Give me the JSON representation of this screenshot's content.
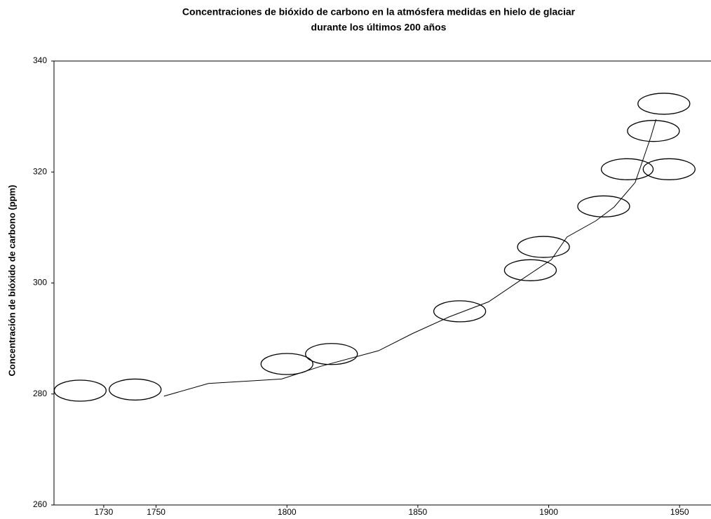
{
  "chart_data": {
    "type": "scatter",
    "title": "Concentraciones de bióxido de carbono en la atmósfera medidas en hielo de glaciar",
    "subtitle": "durante los últimos 200 años",
    "y_label": "Concentración de bióxido de carbono  (ppm)",
    "xlim": [
      1711,
      1962
    ],
    "xticks": [
      1730,
      1750,
      1800,
      1850,
      1900,
      1950
    ],
    "ylim": [
      260,
      340
    ],
    "yticks": [
      260,
      280,
      300,
      320,
      340
    ],
    "color": "#000000",
    "x": [
      1721,
      1742,
      1800,
      1817,
      1866,
      1893,
      1898,
      1921,
      1930,
      1940,
      1944,
      1946
    ],
    "values": [
      280.6,
      280.8,
      285.4,
      287.2,
      294.9,
      302.3,
      306.5,
      313.8,
      320.5,
      327.4,
      332.3,
      320.5
    ],
    "line": {
      "x": [
        1753,
        1770,
        1798,
        1813,
        1835,
        1848,
        1862,
        1877,
        1888,
        1901,
        1907,
        1918,
        1925,
        1933,
        1939,
        1941
      ],
      "values": [
        279.6,
        281.9,
        282.7,
        285.0,
        287.8,
        290.9,
        293.9,
        296.6,
        300.1,
        304.2,
        308.3,
        311.2,
        313.7,
        318.1,
        326.3,
        329.5
      ]
    }
  }
}
